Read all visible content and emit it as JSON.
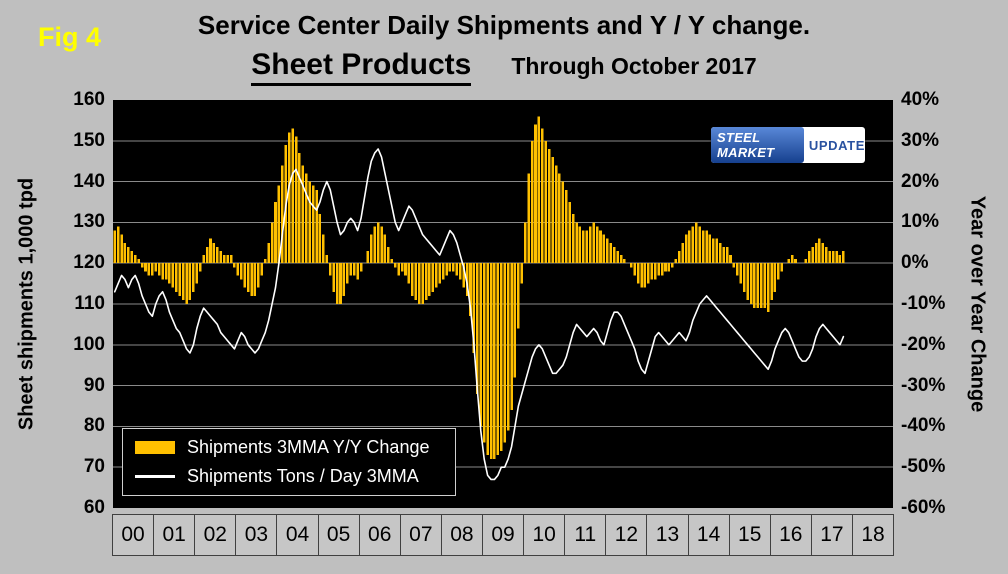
{
  "fig_label": "Fig 4",
  "header": {
    "title": "Service Center Daily Shipments and Y / Y change.",
    "subtitle": "Sheet Products",
    "through": "Through October 2017"
  },
  "logo": {
    "line1": "STEEL MARKET",
    "line2": "UPDATE"
  },
  "left_axis_title": "Sheet shipments 1,000 tpd",
  "right_axis_title": "Year over Year Change",
  "legend": {
    "items": [
      {
        "label": "Shipments 3MMA Y/Y Change",
        "type": "bar",
        "color": "#FFC000"
      },
      {
        "label": "Shipments Tons / Day 3MMA",
        "type": "line",
        "color": "#FFFFFF"
      }
    ]
  },
  "colors": {
    "background": "#bfbfbf",
    "plot_background": "#000000",
    "bar": "#FFC000",
    "line": "#FFFFFF",
    "gridline": "#8a8a8a",
    "fig_label": "#FFFF00"
  },
  "chart_data": {
    "type": "combo: monthly bar (right axis, %) + line (left axis, 1000 tpd)",
    "title": "Service Center Daily Shipments and Y / Y change. Sheet Products. Through October 2017",
    "frequency": "monthly",
    "x_start": "2000-01",
    "x_end": "2017-10",
    "x_years": [
      "00",
      "01",
      "02",
      "03",
      "04",
      "05",
      "06",
      "07",
      "08",
      "09",
      "10",
      "11",
      "12",
      "13",
      "14",
      "15",
      "16",
      "17",
      "18"
    ],
    "left_axis": {
      "label": "Sheet shipments 1,000 tpd",
      "min": 60,
      "max": 160,
      "step": 10,
      "tick_labels": [
        "160",
        "150",
        "140",
        "130",
        "120",
        "110",
        "100",
        "90",
        "80",
        "70",
        "60"
      ]
    },
    "right_axis": {
      "label": "Year over Year Change",
      "min": -60,
      "max": 40,
      "step": 10,
      "tick_labels": [
        "40%",
        "30%",
        "20%",
        "10%",
        "0%",
        "-10%",
        "-20%",
        "-30%",
        "-40%",
        "-50%",
        "-60%"
      ]
    },
    "grid": "horizontal gridlines only, black plot background",
    "legend_position": "inside bottom-left",
    "series": [
      {
        "name": "Shipments 3MMA Y/Y Change",
        "type": "bar",
        "axis": "right",
        "unit": "%",
        "color": "#FFC000",
        "values": [
          8,
          9,
          7,
          5,
          4,
          3,
          2,
          1,
          -1,
          -2,
          -3,
          -3,
          -2,
          -3,
          -4,
          -4,
          -5,
          -6,
          -7,
          -8,
          -9,
          -10,
          -9,
          -7,
          -5,
          -2,
          2,
          4,
          6,
          5,
          4,
          3,
          2,
          2,
          2,
          -1,
          -3,
          -4,
          -6,
          -7,
          -8,
          -8,
          -6,
          -3,
          1,
          5,
          10,
          15,
          19,
          24,
          29,
          32,
          33,
          31,
          27,
          24,
          22,
          20,
          19,
          18,
          12,
          7,
          2,
          -3,
          -7,
          -10,
          -10,
          -8,
          -5,
          -3,
          -3,
          -4,
          -2,
          0,
          3,
          7,
          9,
          10,
          9,
          7,
          4,
          1,
          -1,
          -3,
          -2,
          -3,
          -5,
          -8,
          -9,
          -10,
          -10,
          -9,
          -8,
          -7,
          -6,
          -5,
          -4,
          -3,
          -2,
          -2,
          -3,
          -4,
          -6,
          -8,
          -13,
          -22,
          -32,
          -40,
          -44,
          -47,
          -48,
          -48,
          -47,
          -46,
          -44,
          -41,
          -36,
          -28,
          -16,
          -5,
          10,
          22,
          30,
          34,
          36,
          33,
          30,
          28,
          26,
          24,
          22,
          20,
          18,
          15,
          12,
          10,
          9,
          8,
          8,
          9,
          10,
          9,
          8,
          7,
          6,
          5,
          4,
          3,
          2,
          1,
          0,
          -1,
          -3,
          -5,
          -6,
          -6,
          -5,
          -4,
          -4,
          -3,
          -3,
          -2,
          -2,
          -1,
          1,
          3,
          5,
          7,
          8,
          9,
          10,
          9,
          8,
          8,
          7,
          6,
          6,
          5,
          4,
          4,
          2,
          -1,
          -3,
          -5,
          -7,
          -9,
          -10,
          -11,
          -11,
          -11,
          -11,
          -12,
          -9,
          -7,
          -4,
          -2,
          0,
          1,
          2,
          1,
          0,
          0,
          1,
          3,
          4,
          5,
          6,
          5,
          4,
          3,
          3,
          3,
          2,
          3
        ]
      },
      {
        "name": "Shipments Tons / Day 3MMA",
        "type": "line",
        "axis": "left",
        "unit": "1,000 tons per day",
        "color": "#FFFFFF",
        "values": [
          113,
          115,
          117,
          116,
          114,
          116,
          117,
          115,
          112,
          110,
          108,
          107,
          110,
          112,
          113,
          111,
          108,
          106,
          104,
          103,
          101,
          99,
          98,
          100,
          104,
          107,
          109,
          108,
          107,
          106,
          105,
          103,
          102,
          101,
          100,
          99,
          101,
          103,
          102,
          100,
          99,
          98,
          99,
          101,
          103,
          106,
          110,
          114,
          120,
          127,
          134,
          139,
          142,
          143,
          141,
          139,
          137,
          135,
          134,
          133,
          135,
          138,
          140,
          138,
          134,
          130,
          127,
          128,
          130,
          131,
          130,
          128,
          131,
          136,
          141,
          145,
          147,
          148,
          146,
          142,
          138,
          134,
          130,
          128,
          130,
          132,
          134,
          133,
          131,
          129,
          127,
          126,
          125,
          124,
          123,
          122,
          124,
          126,
          128,
          127,
          125,
          122,
          119,
          115,
          109,
          100,
          89,
          79,
          72,
          68,
          67,
          67,
          68,
          70,
          70,
          72,
          75,
          80,
          85,
          88,
          91,
          94,
          97,
          99,
          100,
          99,
          97,
          95,
          93,
          93,
          94,
          95,
          97,
          100,
          103,
          105,
          104,
          103,
          102,
          103,
          104,
          103,
          101,
          100,
          103,
          106,
          108,
          108,
          107,
          105,
          103,
          101,
          99,
          96,
          94,
          93,
          96,
          99,
          102,
          103,
          102,
          101,
          100,
          101,
          102,
          103,
          102,
          101,
          103,
          106,
          108,
          110,
          111,
          112,
          111,
          110,
          109,
          108,
          107,
          106,
          105,
          104,
          103,
          102,
          101,
          100,
          99,
          98,
          97,
          96,
          95,
          94,
          96,
          99,
          101,
          103,
          104,
          103,
          101,
          99,
          97,
          96,
          96,
          97,
          99,
          102,
          104,
          105,
          104,
          103,
          102,
          101,
          100,
          102
        ]
      }
    ]
  }
}
